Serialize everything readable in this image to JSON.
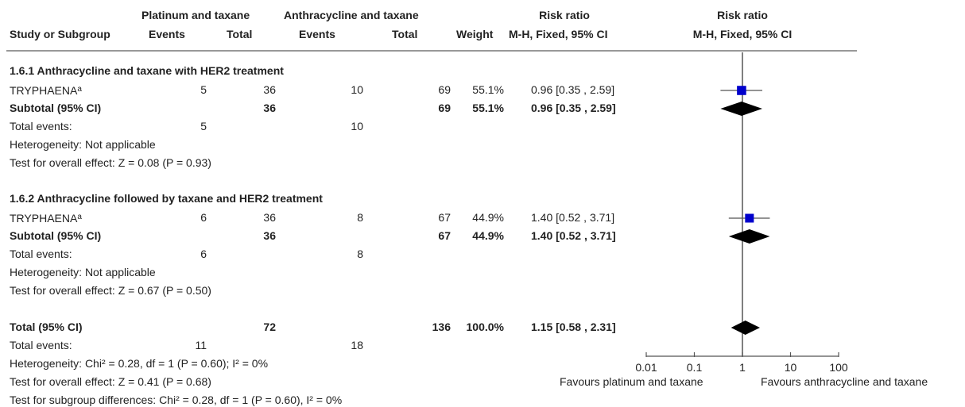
{
  "header": {
    "group1": "Platinum and taxane",
    "group2": "Anthracycline and taxane",
    "rr_num": "Risk ratio",
    "rr_plot": "Risk ratio",
    "study": "Study or Subgroup",
    "events1": "Events",
    "total1": "Total",
    "events2": "Events",
    "total2": "Total",
    "weight": "Weight",
    "method_num": "M-H, Fixed, 95% CI",
    "method_plot": "M-H, Fixed, 95% CI"
  },
  "sub1": {
    "title": "1.6.1 Anthracycline and taxane with HER2 treatment",
    "study": {
      "name": "TRYPHAENA",
      "mark": "a",
      "e1": "5",
      "t1": "36",
      "e2": "10",
      "t2": "69",
      "w": "55.1%",
      "ci": "0.96 [0.35 , 2.59]"
    },
    "subtotal": {
      "label": "Subtotal (95% CI)",
      "t1": "36",
      "t2": "69",
      "w": "55.1%",
      "ci": "0.96 [0.35 , 2.59]"
    },
    "events": {
      "label": "Total events:",
      "e1": "5",
      "e2": "10"
    },
    "het": "Heterogeneity: Not applicable",
    "test": "Test for overall effect: Z = 0.08 (P = 0.93)"
  },
  "sub2": {
    "title": "1.6.2 Anthracycline followed by taxane and HER2 treatment",
    "study": {
      "name": "TRYPHAENA",
      "mark": "a",
      "e1": "6",
      "t1": "36",
      "e2": "8",
      "t2": "67",
      "w": "44.9%",
      "ci": "1.40 [0.52 , 3.71]"
    },
    "subtotal": {
      "label": "Subtotal (95% CI)",
      "t1": "36",
      "t2": "67",
      "w": "44.9%",
      "ci": "1.40 [0.52 , 3.71]"
    },
    "events": {
      "label": "Total events:",
      "e1": "6",
      "e2": "8"
    },
    "het": "Heterogeneity: Not applicable",
    "test": "Test for overall effect: Z = 0.67 (P = 0.50)"
  },
  "total": {
    "label": "Total (95% CI)",
    "t1": "72",
    "t2": "136",
    "w": "100.0%",
    "ci": "1.15 [0.58 , 2.31]",
    "events_label": "Total events:",
    "e1": "11",
    "e2": "18",
    "het": "Heterogeneity: Chi² = 0.28, df = 1 (P = 0.60); I² = 0%",
    "test": "Test for overall effect: Z = 0.41 (P = 0.68)",
    "subgroup": "Test for subgroup differences: Chi² = 0.28, df = 1 (P = 0.60), I² = 0%"
  },
  "axis": {
    "favours_left": "Favours platinum and taxane",
    "favours_right": "Favours anthracycline and taxane"
  },
  "colors": {
    "marker": "#0000cc",
    "diamond": "#000000",
    "line": "#555555"
  },
  "chart_data": {
    "type": "forest",
    "scale": "log",
    "xlim": [
      0.01,
      100
    ],
    "ticks": [
      0.01,
      0.1,
      1,
      10,
      100
    ],
    "tick_labels": [
      "0.01",
      "0.1",
      "1",
      "10",
      "100"
    ],
    "null_line": 1,
    "studies": [
      {
        "name": "TRYPHAENA",
        "rr": 0.96,
        "lo": 0.35,
        "hi": 2.59,
        "weight": 55.1
      },
      {
        "name": "TRYPHAENA",
        "rr": 1.4,
        "lo": 0.52,
        "hi": 3.71,
        "weight": 44.9
      }
    ],
    "pooled": [
      {
        "name": "Subtotal (95% CI)",
        "rr": 0.96,
        "lo": 0.35,
        "hi": 2.59
      },
      {
        "name": "Subtotal (95% CI)",
        "rr": 1.4,
        "lo": 0.52,
        "hi": 3.71
      },
      {
        "name": "Total (95% CI)",
        "rr": 1.15,
        "lo": 0.58,
        "hi": 2.31
      }
    ]
  }
}
